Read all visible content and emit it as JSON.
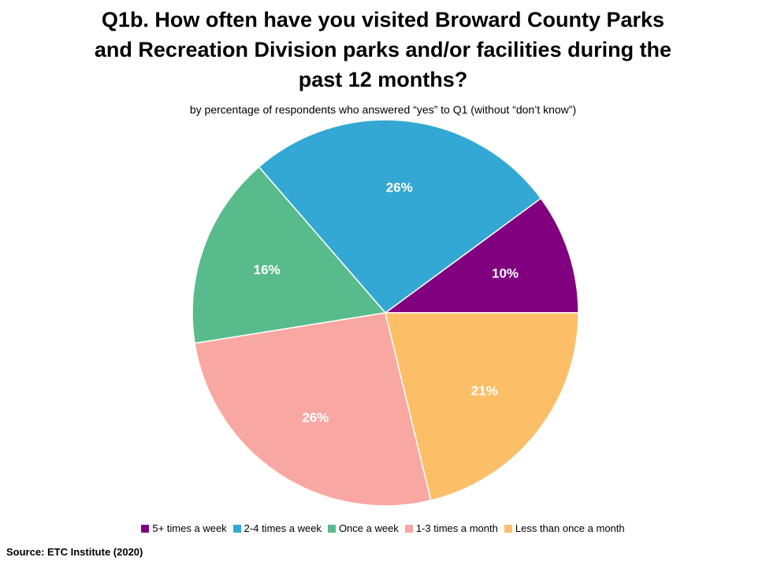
{
  "chart_data": {
    "type": "pie",
    "title_lines": [
      "Q1b. How often have you visited Broward County Parks",
      "and Recreation Division parks and/or facilities during the",
      "past 12 months?"
    ],
    "subtitle": "by percentage of respondents who answered “yes” to Q1 (without “don’t know”)",
    "legend_placement": "bottom",
    "slices": [
      {
        "label": "5+ times a week",
        "value": 10,
        "display": "10%",
        "color": "#800080"
      },
      {
        "label": "2-4 times a week",
        "value": 26,
        "display": "26%",
        "color": "#33a8d4"
      },
      {
        "label": "Once a week",
        "value": 16,
        "display": "16%",
        "color": "#58bb8c"
      },
      {
        "label": "1-3 times a month",
        "value": 26,
        "display": "26%",
        "color": "#f9a7a2"
      },
      {
        "label": "Less than once a month",
        "value": 21,
        "display": "21%",
        "color": "#fcbf68"
      }
    ]
  },
  "source": "Source:  ETC Institute (2020)"
}
